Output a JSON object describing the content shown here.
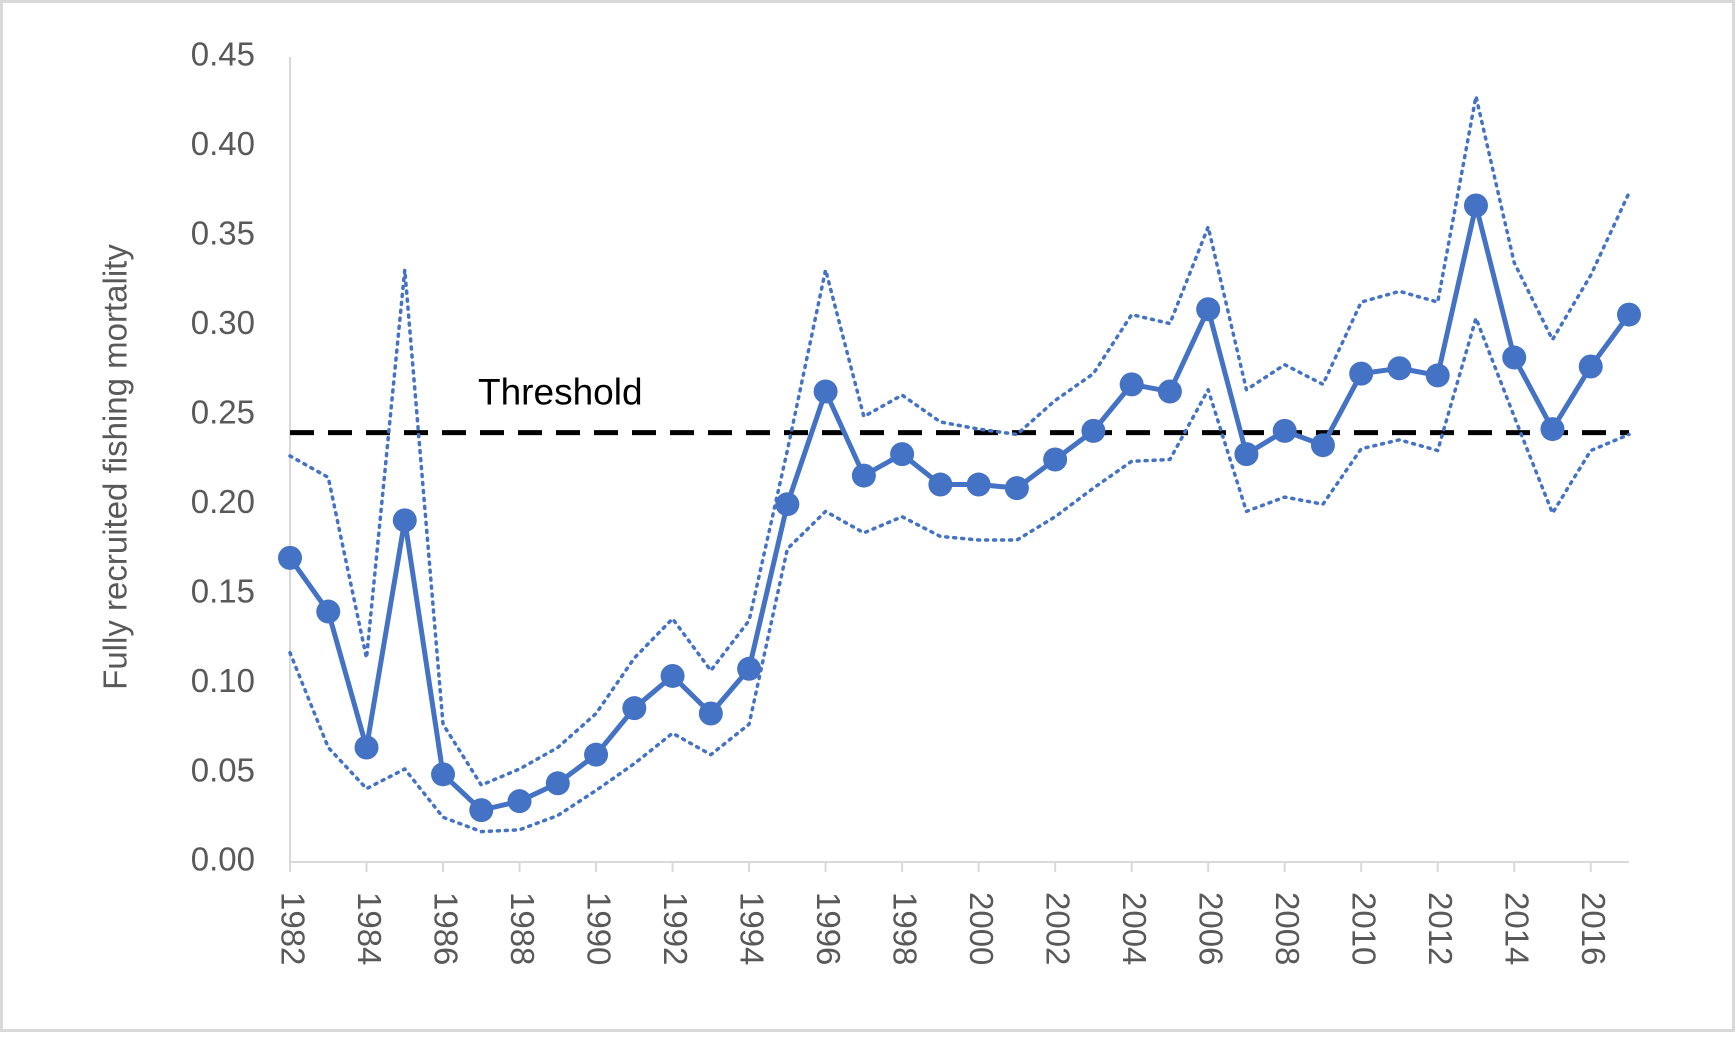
{
  "chart_data": {
    "type": "line",
    "y_label": "Fully recruited  fishing mortality",
    "x": [
      1982,
      1983,
      1984,
      1985,
      1986,
      1987,
      1988,
      1989,
      1990,
      1991,
      1992,
      1993,
      1994,
      1995,
      1996,
      1997,
      1998,
      1999,
      2000,
      2001,
      2002,
      2003,
      2004,
      2005,
      2006,
      2007,
      2008,
      2009,
      2010,
      2011,
      2012,
      2013,
      2014,
      2015,
      2016,
      2017
    ],
    "series": [
      {
        "color": "#4472c4",
        "style": "solid",
        "markers": true,
        "values": [
          0.17,
          0.14,
          0.064,
          0.191,
          0.049,
          0.029,
          0.034,
          0.044,
          0.06,
          0.086,
          0.104,
          0.083,
          0.108,
          0.2,
          0.263,
          0.216,
          0.228,
          0.211,
          0.211,
          0.209,
          0.225,
          0.241,
          0.267,
          0.263,
          0.309,
          0.228,
          0.241,
          0.233,
          0.273,
          0.276,
          0.272,
          0.367,
          0.282,
          0.242,
          0.277,
          0.306
        ]
      },
      {
        "color": "#4472c4",
        "style": "dotted",
        "markers": false,
        "values": [
          0.227,
          0.215,
          0.114,
          0.331,
          0.077,
          0.043,
          0.052,
          0.064,
          0.083,
          0.114,
          0.136,
          0.107,
          0.135,
          0.23,
          0.331,
          0.249,
          0.261,
          0.246,
          0.242,
          0.239,
          0.258,
          0.273,
          0.306,
          0.301,
          0.355,
          0.264,
          0.278,
          0.267,
          0.313,
          0.319,
          0.313,
          0.428,
          0.335,
          0.292,
          0.328,
          0.374
        ]
      },
      {
        "color": "#4472c4",
        "style": "dotted",
        "markers": false,
        "values": [
          0.117,
          0.064,
          0.041,
          0.052,
          0.025,
          0.017,
          0.018,
          0.026,
          0.04,
          0.055,
          0.072,
          0.06,
          0.077,
          0.175,
          0.196,
          0.184,
          0.193,
          0.182,
          0.18,
          0.18,
          0.193,
          0.209,
          0.224,
          0.225,
          0.264,
          0.196,
          0.204,
          0.2,
          0.231,
          0.236,
          0.23,
          0.304,
          0.249,
          0.195,
          0.23,
          0.239
        ]
      }
    ],
    "threshold": {
      "value": 0.24,
      "label": "Threshold",
      "color": "#000000"
    },
    "xlim": [
      1982,
      2017
    ],
    "xticks": [
      1982,
      1984,
      1986,
      1988,
      1990,
      1992,
      1994,
      1996,
      1998,
      2000,
      2002,
      2004,
      2006,
      2008,
      2010,
      2012,
      2014,
      2016
    ],
    "ylim": [
      0,
      0.45
    ],
    "yticks": [
      {
        "value": 0,
        "label": "0.00"
      },
      {
        "value": 0.05,
        "label": "0.05"
      },
      {
        "value": 0.1,
        "label": "0.10"
      },
      {
        "value": 0.15,
        "label": "0.15"
      },
      {
        "value": 0.2,
        "label": "0.20"
      },
      {
        "value": 0.25,
        "label": "0.25"
      },
      {
        "value": 0.3,
        "label": "0.30"
      },
      {
        "value": 0.35,
        "label": "0.35"
      },
      {
        "value": 0.4,
        "label": "0.40"
      },
      {
        "value": 0.45,
        "label": "0.45"
      }
    ],
    "grid": false
  }
}
